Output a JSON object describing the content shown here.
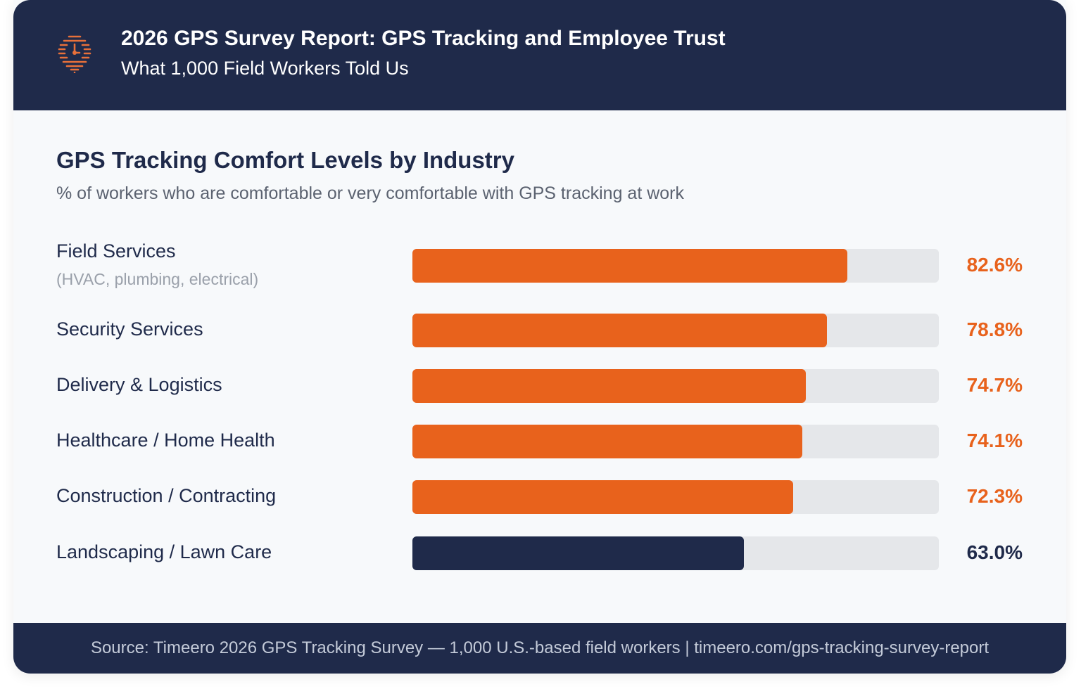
{
  "header": {
    "title": "2026 GPS Survey Report: GPS Tracking and Employee Trust",
    "subtitle": "What 1,000 Field Workers Told Us",
    "logo_icon": "clock-location-pin-icon"
  },
  "colors": {
    "navy": "#1f2a4a",
    "orange": "#e8621c",
    "track": "#e5e7ea"
  },
  "chart_data": {
    "type": "bar",
    "orientation": "horizontal",
    "title": "GPS Tracking Comfort Levels by Industry",
    "subtitle": "% of workers who are comfortable or very comfortable with GPS tracking at work",
    "xlim": [
      0,
      100
    ],
    "grid": false,
    "categories": [
      {
        "label": "Field Services",
        "sublabel": "(HVAC, plumbing, electrical)",
        "value": 82.6,
        "value_label": "82.6%",
        "color": "#e8621c"
      },
      {
        "label": "Security Services",
        "value": 78.8,
        "value_label": "78.8%",
        "color": "#e8621c"
      },
      {
        "label": "Delivery & Logistics",
        "value": 74.7,
        "value_label": "74.7%",
        "color": "#e8621c"
      },
      {
        "label": "Healthcare / Home Health",
        "value": 74.1,
        "value_label": "74.1%",
        "color": "#e8621c"
      },
      {
        "label": "Construction / Contracting",
        "value": 72.3,
        "value_label": "72.3%",
        "color": "#e8621c"
      },
      {
        "label": "Landscaping / Lawn Care",
        "value": 63.0,
        "value_label": "63.0%",
        "color": "#1f2a4a"
      }
    ]
  },
  "footer": {
    "text": "Source: Timeero 2026 GPS Tracking Survey — 1,000 U.S.-based field workers  |  timeero.com/gps-tracking-survey-report"
  }
}
